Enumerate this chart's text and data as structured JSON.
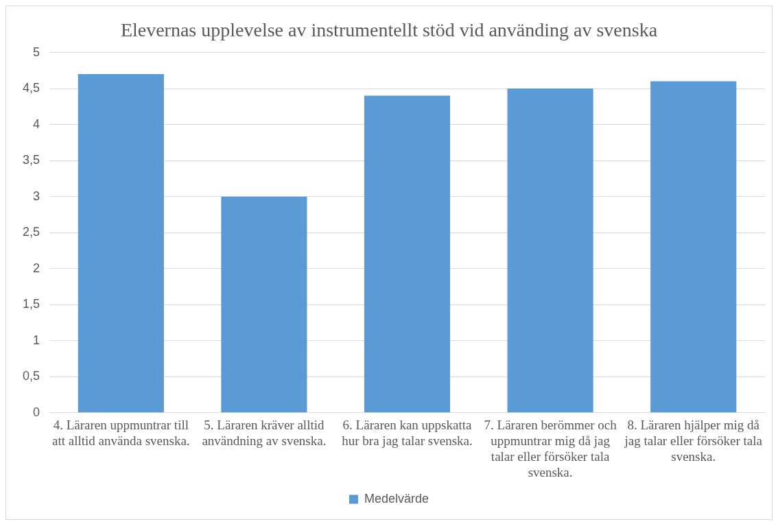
{
  "chart_data": {
    "type": "bar",
    "title": "Elevernas upplevelse av instrumentellt stöd vid använding av svenska",
    "categories": [
      "4. Läraren uppmuntrar till att alltid använda svenska.",
      "5. Läraren kräver alltid användning av svenska.",
      "6. Läraren kan uppskatta hur bra jag talar svenska.",
      "7. Läraren berömmer och uppmuntrar mig då jag talar eller försöker tala svenska.",
      "8. Läraren hjälper mig då jag talar eller försöker tala svenska."
    ],
    "series": [
      {
        "name": "Medelvärde",
        "color": "#5b9bd5",
        "values": [
          4.7,
          3.0,
          4.4,
          4.5,
          4.6
        ]
      }
    ],
    "ylim": [
      0,
      5
    ],
    "yticks": [
      0,
      {
        "value": 0.5,
        "label": "0,5"
      },
      1,
      {
        "value": 1.5,
        "label": "1,5"
      },
      2,
      {
        "value": 2.5,
        "label": "2,5"
      },
      3,
      {
        "value": 3.5,
        "label": "3,5"
      },
      4,
      {
        "value": 4.5,
        "label": "4,5"
      },
      5
    ],
    "grid": "y",
    "legend": "bottom"
  }
}
